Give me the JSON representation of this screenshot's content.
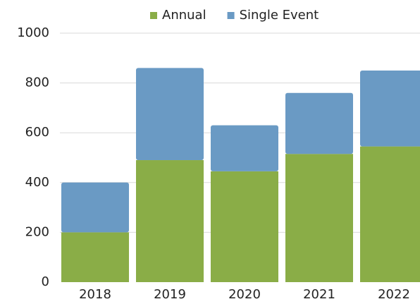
{
  "chart_data": {
    "type": "stacked_bar",
    "categories": [
      "2018",
      "2019",
      "2020",
      "2021",
      "2022"
    ],
    "series": [
      {
        "name": "Annual",
        "color": "#8aad47",
        "values": [
          200,
          490,
          445,
          515,
          545
        ]
      },
      {
        "name": "Single Event",
        "color": "#6a9ac4",
        "values": [
          200,
          370,
          185,
          245,
          305
        ]
      }
    ],
    "ylim": [
      0,
      1000
    ],
    "yticks": [
      0,
      200,
      400,
      600,
      800,
      1000
    ],
    "grid": true,
    "legend": "top"
  }
}
